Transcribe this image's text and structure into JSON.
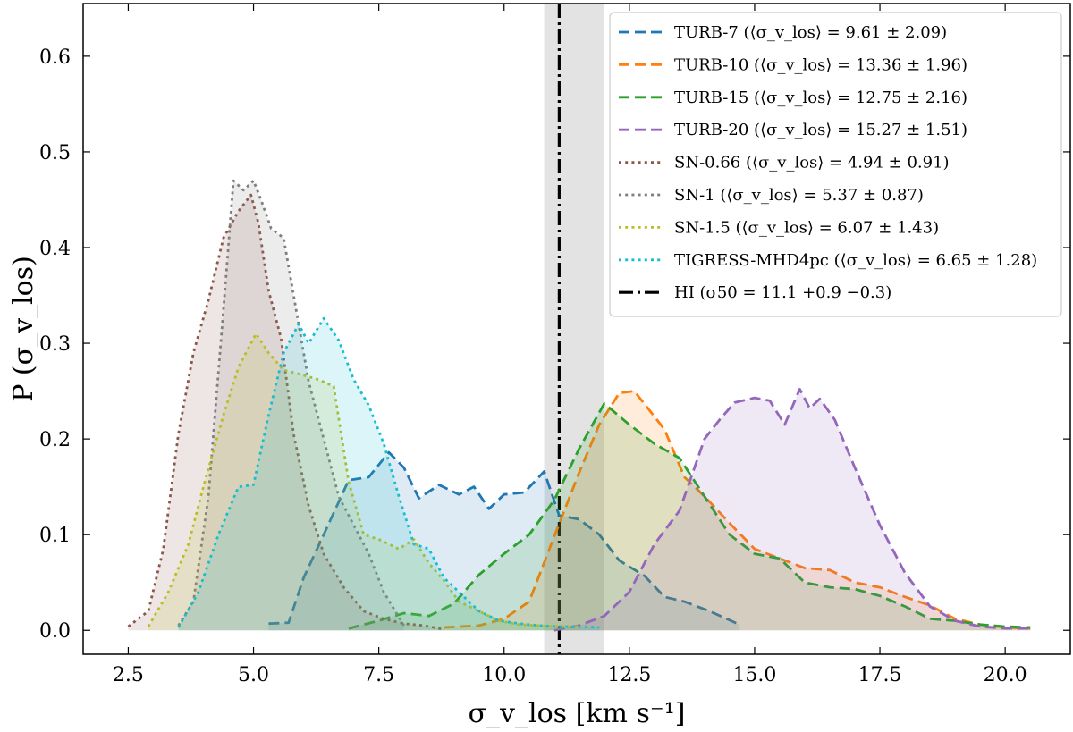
{
  "chart_data": {
    "type": "line",
    "xlabel": "σ_v_los [km s⁻¹]",
    "ylabel": "P (σ_v_los)",
    "xlim": [
      1.6,
      21.3
    ],
    "ylim": [
      -0.025,
      0.655
    ],
    "xticks": [
      2.5,
      5.0,
      7.5,
      10.0,
      12.5,
      15.0,
      17.5,
      20.0
    ],
    "xtick_labels": [
      "2.5",
      "5.0",
      "7.5",
      "10.0",
      "12.5",
      "15.0",
      "17.5",
      "20.0"
    ],
    "yticks": [
      0.0,
      0.1,
      0.2,
      0.3,
      0.4,
      0.5,
      0.6
    ],
    "ytick_labels": [
      "0.0",
      "0.1",
      "0.2",
      "0.3",
      "0.4",
      "0.5",
      "0.6"
    ],
    "hi_line": {
      "x": 11.1,
      "band": [
        10.8,
        12.0
      ],
      "label": "HI (σ50 = 11.1 +0.9 −0.3)"
    },
    "series": [
      {
        "name": "TURB-7 (⟨σ_v_los⟩ = 9.61 ± 2.09)",
        "color": "#1f77b4",
        "style": "dashed",
        "x": [
          5.3,
          5.7,
          6.0,
          6.4,
          6.9,
          7.3,
          7.7,
          8.0,
          8.3,
          8.7,
          9.1,
          9.4,
          9.7,
          10.0,
          10.4,
          10.8,
          11.1,
          11.5,
          11.9,
          12.3,
          12.8,
          13.2,
          13.6,
          14.1,
          14.7
        ],
        "values": [
          0.007,
          0.008,
          0.055,
          0.1,
          0.157,
          0.16,
          0.186,
          0.17,
          0.138,
          0.152,
          0.142,
          0.15,
          0.127,
          0.142,
          0.144,
          0.166,
          0.12,
          0.116,
          0.1,
          0.073,
          0.057,
          0.035,
          0.03,
          0.02,
          0.006
        ]
      },
      {
        "name": "TURB-10 (⟨σ_v_los⟩ = 13.36 ± 1.96)",
        "color": "#ff7f0e",
        "style": "dashed",
        "x": [
          8.8,
          9.5,
          10.0,
          10.5,
          11.0,
          11.5,
          11.9,
          12.3,
          12.6,
          12.9,
          13.2,
          13.6,
          14.0,
          14.5,
          15.0,
          15.5,
          16.0,
          16.5,
          17.0,
          17.5,
          18.0,
          18.5,
          19.0,
          19.5,
          20.0,
          20.5
        ],
        "values": [
          0.003,
          0.005,
          0.012,
          0.03,
          0.098,
          0.165,
          0.215,
          0.248,
          0.25,
          0.23,
          0.21,
          0.16,
          0.14,
          0.112,
          0.085,
          0.075,
          0.065,
          0.063,
          0.05,
          0.045,
          0.035,
          0.026,
          0.012,
          0.006,
          0.003,
          0.002
        ]
      },
      {
        "name": "TURB-15 (⟨σ_v_los⟩ = 12.75 ± 2.16)",
        "color": "#2ca02c",
        "style": "dashed",
        "x": [
          6.9,
          7.5,
          8.0,
          8.5,
          9.0,
          9.5,
          10.0,
          10.5,
          11.0,
          11.5,
          12.0,
          12.5,
          13.0,
          13.5,
          14.0,
          14.5,
          15.0,
          15.5,
          16.0,
          16.5,
          17.0,
          17.5,
          18.0,
          18.5,
          19.0,
          19.5,
          20.0,
          20.5
        ],
        "values": [
          0.002,
          0.01,
          0.018,
          0.015,
          0.028,
          0.058,
          0.08,
          0.1,
          0.136,
          0.19,
          0.237,
          0.215,
          0.195,
          0.18,
          0.14,
          0.1,
          0.08,
          0.075,
          0.05,
          0.045,
          0.043,
          0.036,
          0.025,
          0.012,
          0.01,
          0.006,
          0.004,
          0.003
        ]
      },
      {
        "name": "TURB-20 (⟨σ_v_los⟩ = 15.27 ± 1.51)",
        "color": "#9467bd",
        "style": "dashed",
        "x": [
          11.0,
          11.5,
          12.0,
          12.5,
          13.0,
          13.5,
          14.0,
          14.3,
          14.6,
          15.0,
          15.3,
          15.6,
          15.9,
          16.1,
          16.3,
          16.6,
          17.0,
          17.5,
          18.0,
          18.5,
          19.0,
          19.5,
          20.0,
          20.5
        ],
        "values": [
          0.0,
          0.005,
          0.015,
          0.04,
          0.09,
          0.125,
          0.2,
          0.22,
          0.238,
          0.243,
          0.24,
          0.215,
          0.252,
          0.232,
          0.242,
          0.22,
          0.17,
          0.11,
          0.06,
          0.025,
          0.01,
          0.004,
          0.002,
          0.002
        ]
      },
      {
        "name": "SN-0.66 (⟨σ_v_los⟩ = 4.94 ± 0.91)",
        "color": "#8c564b",
        "style": "dotted",
        "x": [
          2.5,
          2.9,
          3.2,
          3.5,
          3.8,
          4.1,
          4.4,
          4.7,
          4.95,
          5.1,
          5.3,
          5.55,
          5.8,
          6.1,
          6.4,
          6.8,
          7.2,
          7.6,
          8.0,
          8.4,
          8.8
        ],
        "values": [
          0.004,
          0.02,
          0.085,
          0.205,
          0.29,
          0.345,
          0.41,
          0.438,
          0.455,
          0.425,
          0.355,
          0.305,
          0.205,
          0.13,
          0.08,
          0.045,
          0.02,
          0.012,
          0.007,
          0.005,
          0.001
        ]
      },
      {
        "name": "SN-1 (⟨σ_v_los⟩ = 5.37 ± 0.87)",
        "color": "#7f7f7f",
        "style": "dotted",
        "x": [
          3.5,
          3.8,
          4.1,
          4.4,
          4.6,
          4.8,
          5.0,
          5.15,
          5.35,
          5.6,
          5.8,
          6.1,
          6.4,
          6.7,
          7.0,
          7.3,
          7.6,
          8.0
        ],
        "values": [
          0.005,
          0.03,
          0.14,
          0.335,
          0.47,
          0.46,
          0.47,
          0.45,
          0.42,
          0.41,
          0.35,
          0.26,
          0.2,
          0.14,
          0.11,
          0.08,
          0.04,
          0.005
        ]
      },
      {
        "name": "SN-1.5 (⟨σ_v_los⟩ = 6.07 ± 1.43)",
        "color": "#bcbd22",
        "style": "dotted",
        "x": [
          2.9,
          3.3,
          3.7,
          4.0,
          4.4,
          4.7,
          5.05,
          5.3,
          5.6,
          5.9,
          6.3,
          6.6,
          6.9,
          7.2,
          7.5,
          7.9,
          8.2,
          8.5,
          8.8,
          9.1,
          9.5,
          9.9,
          10.3,
          10.7,
          11.1,
          11.5
        ],
        "values": [
          0.004,
          0.04,
          0.09,
          0.15,
          0.225,
          0.275,
          0.31,
          0.29,
          0.272,
          0.268,
          0.262,
          0.255,
          0.155,
          0.1,
          0.095,
          0.085,
          0.095,
          0.07,
          0.052,
          0.03,
          0.02,
          0.01,
          0.006,
          0.005,
          0.004,
          0.004
        ]
      },
      {
        "name": "TIGRESS-MHD4pc (⟨σ_v_los⟩ = 6.65 ± 1.28)",
        "color": "#17becf",
        "style": "dotted",
        "x": [
          3.5,
          3.9,
          4.3,
          4.7,
          5.0,
          5.3,
          5.6,
          5.9,
          6.1,
          6.4,
          6.7,
          7.0,
          7.3,
          7.6,
          7.9,
          8.2,
          8.5,
          8.8,
          9.1,
          9.5,
          9.9,
          10.3,
          10.7,
          11.1,
          11.5,
          11.9
        ],
        "values": [
          0.003,
          0.04,
          0.1,
          0.15,
          0.152,
          0.225,
          0.29,
          0.32,
          0.3,
          0.326,
          0.303,
          0.262,
          0.235,
          0.195,
          0.14,
          0.09,
          0.085,
          0.055,
          0.04,
          0.02,
          0.01,
          0.007,
          0.005,
          0.004,
          0.004,
          0.003
        ]
      }
    ],
    "legend": {
      "position": "top-right"
    }
  }
}
